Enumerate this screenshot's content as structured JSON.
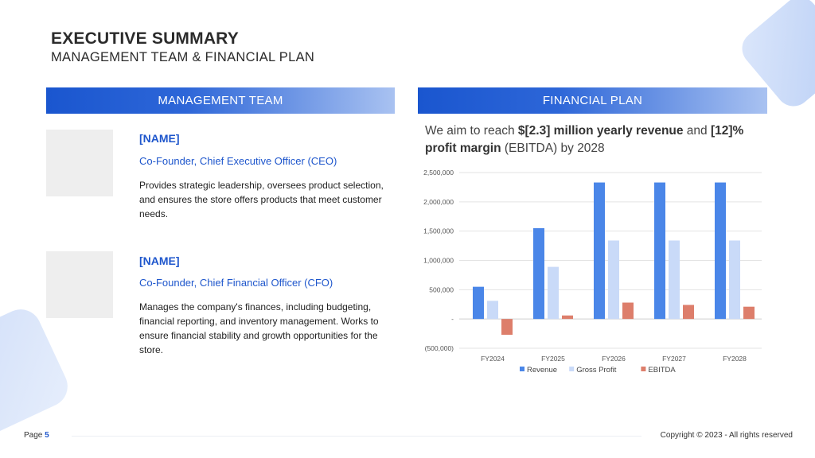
{
  "header": {
    "title": "EXECUTIVE SUMMARY",
    "subtitle": "MANAGEMENT TEAM & FINANCIAL PLAN"
  },
  "management": {
    "heading": "MANAGEMENT TEAM",
    "members": [
      {
        "name": "[NAME]",
        "role": "Co-Founder, Chief Executive Officer (CEO)",
        "description": "Provides strategic leadership, oversees product selection, and ensures the store offers products that meet customer needs."
      },
      {
        "name": "[NAME]",
        "role": "Co-Founder, Chief Financial Officer (CFO)",
        "description": "Manages the company's finances, including budgeting, financial reporting, and inventory management. Works to ensure financial stability and growth opportunities for the store."
      }
    ]
  },
  "financial": {
    "heading": "FINANCIAL PLAN",
    "goal_prefix": "We aim to reach ",
    "goal_bold1": "$[2.3] million yearly revenue",
    "goal_mid": " and ",
    "goal_bold2": "[12]% profit margin",
    "goal_suffix": " (EBITDA) by 2028"
  },
  "chart_data": {
    "type": "bar",
    "categories": [
      "FY2024",
      "FY2025",
      "FY2026",
      "FY2027",
      "FY2028"
    ],
    "series": [
      {
        "name": "Revenue",
        "color": "#4a86e8",
        "values": [
          550000,
          1550000,
          2330000,
          2330000,
          2330000
        ]
      },
      {
        "name": "Gross Profit",
        "color": "#c9daf8",
        "values": [
          310000,
          890000,
          1340000,
          1340000,
          1340000
        ]
      },
      {
        "name": "EBITDA",
        "color": "#dd7e6b",
        "values": [
          -270000,
          60000,
          280000,
          240000,
          210000
        ]
      }
    ],
    "ylim": [
      -500000,
      2500000
    ],
    "yticks": [
      2500000,
      2000000,
      1500000,
      1000000,
      500000,
      0,
      -500000
    ],
    "ytick_labels": [
      "2,500,000",
      "2,000,000",
      "1,500,000",
      "1,000,000",
      "500,000",
      "-",
      "(500,000)"
    ],
    "grid": true,
    "legend_position": "bottom"
  },
  "footer": {
    "page_label": "Page",
    "page_number": "5",
    "copyright": "Copyright © 2023 - All rights reserved"
  }
}
